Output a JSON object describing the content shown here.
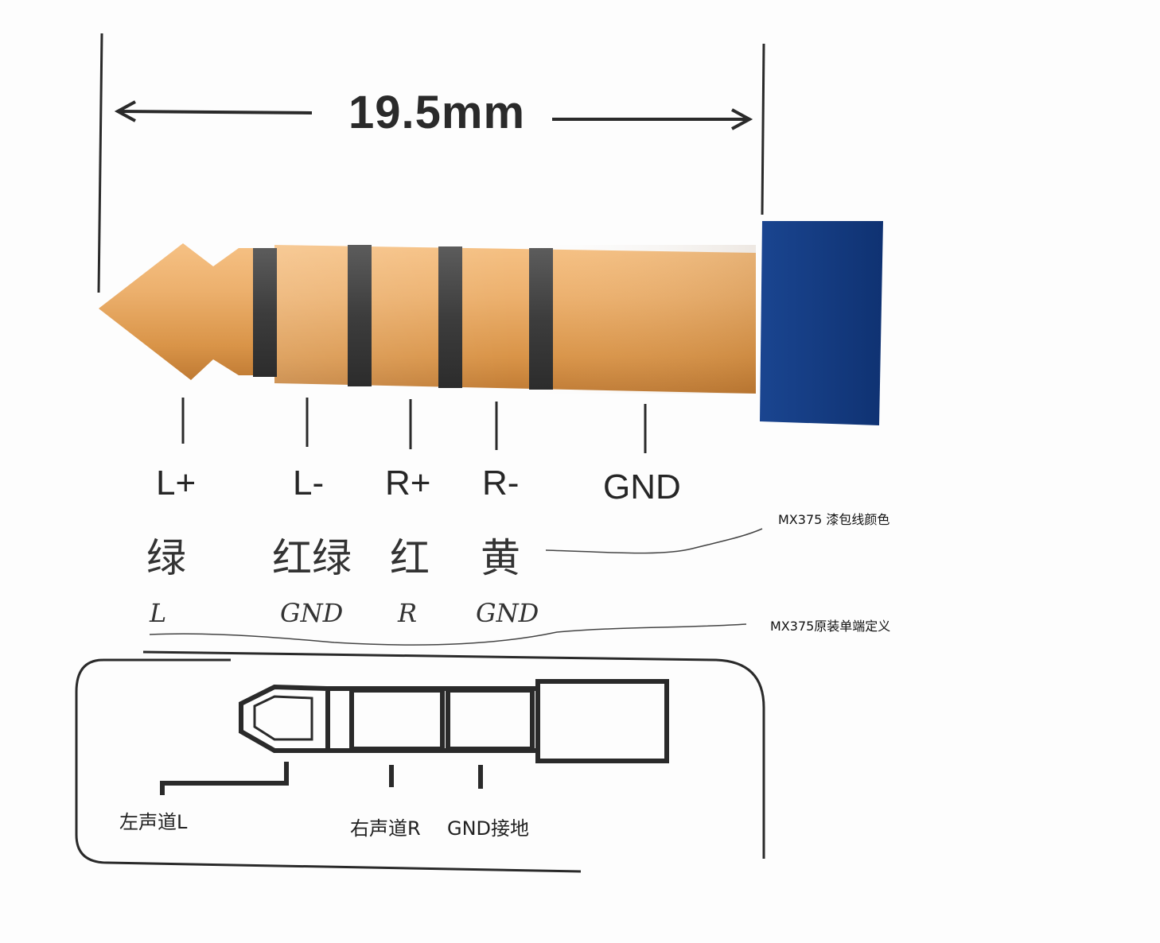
{
  "dimension": "19.5mm",
  "pins": [
    {
      "id": "lplus",
      "label": "L+",
      "color_cn": "绿",
      "def": "L"
    },
    {
      "id": "lminus",
      "label": "L-",
      "color_cn": "红绿",
      "def": "GND"
    },
    {
      "id": "rplus",
      "label": "R+",
      "color_cn": "红",
      "def": "R"
    },
    {
      "id": "rminus",
      "label": "R-",
      "color_cn": "黄",
      "def": "GND"
    },
    {
      "id": "gnd",
      "label": "GND",
      "color_cn": "",
      "def": ""
    }
  ],
  "notes": {
    "wire_color": "MX375 漆包线颜色",
    "original_def": "MX375原装单端定义"
  },
  "small_plug": {
    "left": "左声道L",
    "right": "右声道R",
    "ground": "GND接地"
  },
  "colors": {
    "plug_gold": "#e6a35c",
    "ring_dark": "#4a4a4a",
    "handle_blue": "#143a82"
  }
}
